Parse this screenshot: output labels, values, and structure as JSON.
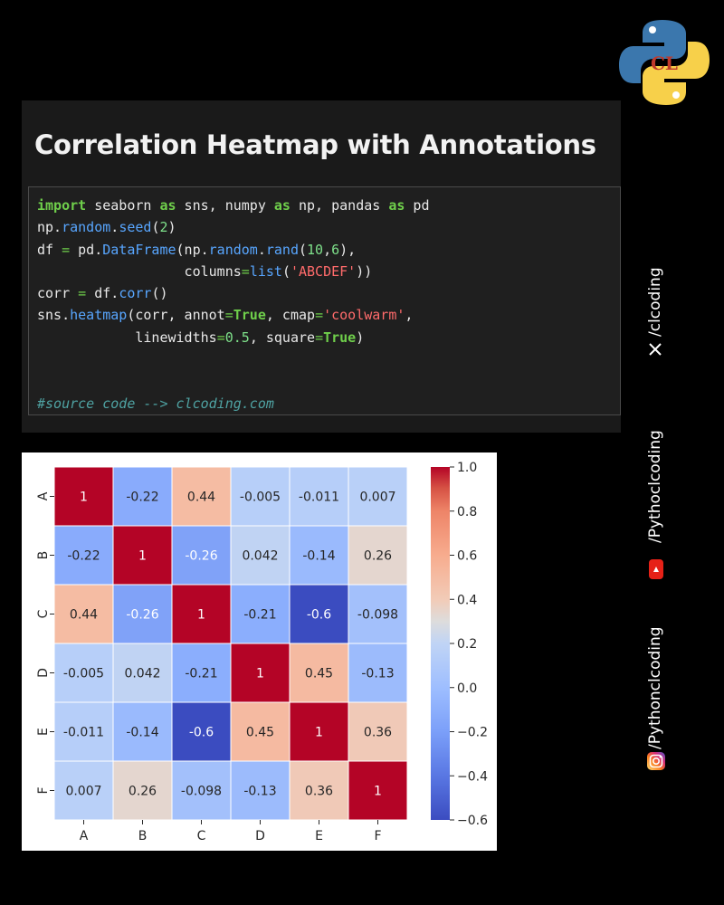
{
  "title": "Correlation Heatmap with Annotations",
  "code_comment": "#source code --> clcoding.com",
  "social": {
    "x_handle": "/clcoding",
    "youtube_handle": "/Pythoclcoding",
    "instagram_handle": "/Pythonclcoding"
  },
  "chart_data": {
    "type": "heatmap",
    "x_categories": [
      "A",
      "B",
      "C",
      "D",
      "E",
      "F"
    ],
    "y_categories": [
      "A",
      "B",
      "C",
      "D",
      "E",
      "F"
    ],
    "values": [
      [
        1,
        -0.22,
        0.44,
        -0.005,
        -0.011,
        0.007
      ],
      [
        -0.22,
        1,
        -0.26,
        0.042,
        -0.14,
        0.26
      ],
      [
        0.44,
        -0.26,
        1,
        -0.21,
        -0.6,
        -0.098
      ],
      [
        -0.005,
        0.042,
        -0.21,
        1,
        0.45,
        -0.13
      ],
      [
        -0.011,
        -0.14,
        -0.6,
        0.45,
        1,
        0.36
      ],
      [
        0.007,
        0.26,
        -0.098,
        -0.13,
        0.36,
        1
      ]
    ],
    "labels": [
      [
        "1",
        "-0.22",
        "0.44",
        "-0.005",
        "-0.011",
        "0.007"
      ],
      [
        "-0.22",
        "1",
        "-0.26",
        "0.042",
        "-0.14",
        "0.26"
      ],
      [
        "0.44",
        "-0.26",
        "1",
        "-0.21",
        "-0.6",
        "-0.098"
      ],
      [
        "-0.005",
        "0.042",
        "-0.21",
        "1",
        "0.45",
        "-0.13"
      ],
      [
        "-0.011",
        "-0.14",
        "-0.6",
        "0.45",
        "1",
        "0.36"
      ],
      [
        "0.007",
        "0.26",
        "-0.098",
        "-0.13",
        "0.36",
        "1"
      ]
    ],
    "colormap": "coolwarm",
    "vmin": -0.6,
    "vmax": 1.0,
    "colorbar_ticks": [
      1.0,
      0.8,
      0.6,
      0.4,
      0.2,
      0.0,
      -0.2,
      -0.4,
      -0.6
    ],
    "colorbar_tick_labels": [
      "1.0",
      "0.8",
      "0.6",
      "0.4",
      "0.2",
      "0.0",
      "−0.2",
      "−0.4",
      "−0.6"
    ]
  }
}
